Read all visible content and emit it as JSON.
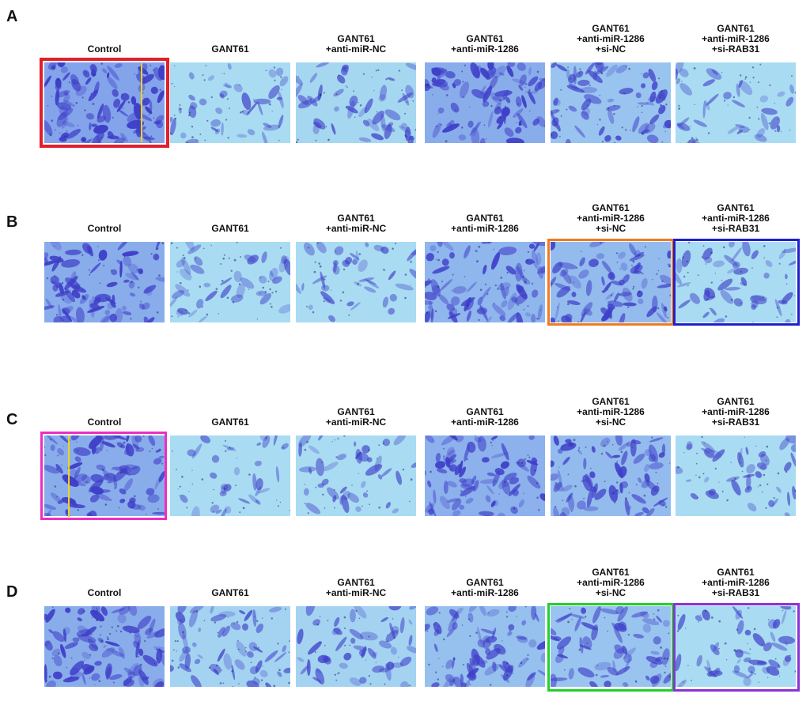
{
  "panels": [
    {
      "letter": "A",
      "labels": [
        [
          "Control"
        ],
        [
          "GANT61"
        ],
        [
          "GANT61",
          "+anti-miR-NC"
        ],
        [
          "GANT61",
          "+anti-miR-1286"
        ],
        [
          "GANT61",
          "+anti-miR-1286",
          "+si-NC"
        ],
        [
          "GANT61",
          "+anti-miR-1286",
          "+si-RAB31"
        ]
      ]
    },
    {
      "letter": "B",
      "labels": [
        [
          "Control"
        ],
        [
          "GANT61"
        ],
        [
          "GANT61",
          "+anti-miR-NC"
        ],
        [
          "GANT61",
          "+anti-miR-1286"
        ],
        [
          "GANT61",
          "+anti-miR-1286",
          "+si-NC"
        ],
        [
          "GANT61",
          "+anti-miR-1286",
          "+si-RAB31"
        ]
      ]
    },
    {
      "letter": "C",
      "labels": [
        [
          "Control"
        ],
        [
          "GANT61"
        ],
        [
          "GANT61",
          "+anti-miR-NC"
        ],
        [
          "GANT61",
          "+anti-miR-1286"
        ],
        [
          "GANT61",
          "+anti-miR-1286",
          "+si-NC"
        ],
        [
          "GANT61",
          "+anti-miR-1286",
          "+si-RAB31"
        ]
      ]
    },
    {
      "letter": "D",
      "labels": [
        [
          "Control"
        ],
        [
          "GANT61"
        ],
        [
          "GANT61",
          "+anti-miR-NC"
        ],
        [
          "GANT61",
          "+anti-miR-1286"
        ],
        [
          "GANT61",
          "+anti-miR-1286",
          "+si-NC"
        ],
        [
          "GANT61",
          "+anti-miR-1286",
          "+si-RAB31"
        ]
      ]
    }
  ],
  "colors": {
    "background_light": "#a9dcf2",
    "background_dark": "#6f86e6",
    "cell_stain": "#3f3fc8",
    "highlight_red": "#e0202a",
    "highlight_yellow": "#f2d21a",
    "highlight_orange": "#f07a1e",
    "highlight_blue": "#1f1fd0",
    "highlight_magenta": "#ec2fc0",
    "highlight_green": "#22d02a",
    "highlight_purple": "#8a32d8"
  },
  "cell_density": [
    [
      0.95,
      0.3,
      0.4,
      0.85,
      0.6,
      0.25
    ],
    [
      0.85,
      0.25,
      0.3,
      0.75,
      0.7,
      0.35
    ],
    [
      0.85,
      0.2,
      0.3,
      0.8,
      0.7,
      0.3
    ],
    [
      0.85,
      0.45,
      0.45,
      0.65,
      0.6,
      0.35
    ]
  ]
}
